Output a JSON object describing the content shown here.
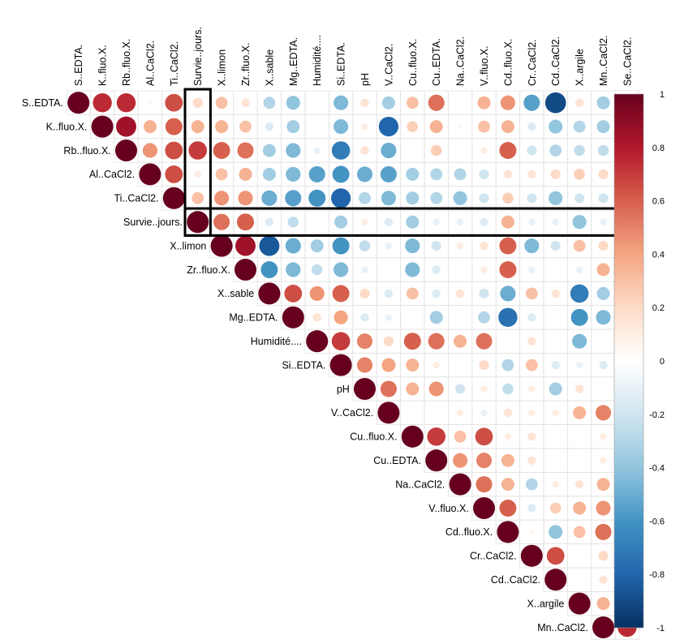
{
  "chart_data": {
    "type": "heatmap",
    "style": "correlation-matrix-upper-triangle-circles",
    "variables": [
      "S..EDTA.",
      "K..fluo.X.",
      "Rb..fluo.X.",
      "Al..CaCl2.",
      "Ti..CaCl2.",
      "Survie..jours.",
      "X..limon",
      "Zr..fluo.X.",
      "X..sable",
      "Mg..EDTA.",
      "Humidité....",
      "Si..EDTA.",
      "pH",
      "V..CaCl2.",
      "Cu..fluo.X.",
      "Cu..EDTA.",
      "Na..CaCl2.",
      "V..fluo.X.",
      "Cd..fluo.X.",
      "Cr..CaCl2.",
      "Cd..CaCl2.",
      "X..argile",
      "Mn..CaCl2.",
      "Se..CaCl2."
    ],
    "highlight_variable": "Survie..jours.",
    "color_scale": {
      "range": [
        -1,
        1
      ],
      "ticks": [
        1,
        0.8,
        0.6,
        0.4,
        0.2,
        0,
        -0.2,
        -0.4,
        -0.6,
        -0.8,
        -1
      ],
      "tick_labels": [
        "1",
        "0.8",
        "0.6",
        "0.4",
        "0.2",
        "0",
        "-0.2",
        "-0.4",
        "-0.6",
        "-0.8",
        "-1"
      ],
      "colors": [
        "#67001F",
        "#B2182B",
        "#D6604D",
        "#F4A582",
        "#FDDBC7",
        "#FFFFFF",
        "#D1E5F0",
        "#92C5DE",
        "#4393C3",
        "#2166AC",
        "#053061"
      ]
    },
    "upper_triangle": [
      [
        1,
        0.75,
        0.75,
        0.05,
        0.65,
        0.2,
        0.3,
        0.15,
        -0.3,
        -0.4,
        0,
        -0.45,
        0.15,
        -0.35,
        0.3,
        0.55,
        0,
        0.35,
        0.45,
        -0.55,
        -0.9,
        0.15,
        -0.35,
        -0.6
      ],
      [
        1,
        0.85,
        0.35,
        0.6,
        0.35,
        0.35,
        0.3,
        -0.15,
        -0.35,
        0,
        -0.45,
        0.1,
        -0.8,
        0.25,
        0.35,
        -0.05,
        0.3,
        0.35,
        -0.15,
        -0.4,
        -0.3,
        -0.35,
        -0.45
      ],
      [
        1,
        0.45,
        0.65,
        0.7,
        0.6,
        0.55,
        -0.35,
        -0.45,
        -0.1,
        -0.7,
        0.15,
        -0.5,
        0,
        0.25,
        0,
        0.1,
        0.6,
        -0.2,
        -0.3,
        -0.25,
        -0.25,
        -0.35
      ],
      [
        1,
        0.65,
        0.1,
        0.3,
        0.35,
        -0.35,
        -0.45,
        -0.55,
        -0.6,
        -0.5,
        -0.55,
        -0.35,
        -0.3,
        -0.3,
        -0.2,
        0.15,
        0.15,
        0.2,
        0.25,
        0.2,
        0.25
      ],
      [
        1,
        0.3,
        0.45,
        0.45,
        -0.5,
        -0.55,
        -0.6,
        -0.8,
        -0.3,
        -0.45,
        -0.35,
        -0.3,
        -0.4,
        -0.2,
        0.25,
        -0.2,
        -0.4,
        -0.2,
        -0.2,
        -0.25
      ],
      [
        1,
        0.55,
        0.6,
        -0.15,
        -0.25,
        0,
        -0.35,
        0.1,
        -0.15,
        -0.35,
        -0.1,
        -0.1,
        -0.15,
        0.35,
        -0.1,
        -0.1,
        -0.4,
        -0.1,
        -0.3
      ],
      [
        1,
        0.85,
        -0.85,
        -0.5,
        -0.35,
        -0.6,
        -0.25,
        -0.1,
        -0.45,
        -0.2,
        0.1,
        0.15,
        0.6,
        -0.45,
        -0.2,
        0.3,
        0.2,
        0
      ],
      [
        1,
        -0.6,
        -0.45,
        -0.25,
        -0.45,
        -0.1,
        0,
        -0.45,
        -0.15,
        0,
        0.1,
        0.6,
        -0.1,
        0,
        -0.1,
        0.35,
        0.25
      ],
      [
        1,
        0.65,
        0.45,
        0.6,
        0.2,
        -0.15,
        0.3,
        -0.15,
        0.15,
        -0.2,
        -0.5,
        0.3,
        0.15,
        -0.7,
        -0.35,
        -0.25
      ],
      [
        1,
        0.15,
        0.4,
        -0.15,
        -0.1,
        0,
        -0.35,
        0,
        -0.3,
        -0.75,
        -0.15,
        0,
        -0.6,
        -0.45,
        0
      ],
      [
        1,
        0.7,
        0.5,
        0.2,
        0.6,
        0.55,
        0.35,
        0.55,
        0,
        0.15,
        0,
        -0.45,
        0,
        0
      ],
      [
        1,
        0.5,
        0.4,
        0.35,
        0.1,
        0,
        0.2,
        -0.3,
        0.3,
        -0.15,
        -0.1,
        -0.15,
        0.05
      ],
      [
        1,
        0.55,
        0.35,
        0.45,
        -0.2,
        0.1,
        -0.25,
        0.1,
        -0.35,
        0.15,
        0,
        -0.5
      ],
      [
        1,
        0,
        0,
        0.1,
        -0.1,
        0.15,
        0.1,
        0.1,
        0.35,
        0.5,
        -0.15
      ],
      [
        1,
        0.7,
        0.3,
        0.65,
        0.1,
        0.15,
        0,
        0,
        0.1,
        -0.2
      ],
      [
        1,
        0.45,
        0.5,
        0.35,
        0.15,
        0,
        0,
        0.1,
        -0.35
      ],
      [
        1,
        0.55,
        0.35,
        -0.3,
        0.1,
        0.15,
        0.35,
        0.4
      ],
      [
        1,
        0.6,
        -0.15,
        0.25,
        0.35,
        0.45,
        0.15
      ],
      [
        1,
        0.05,
        -0.4,
        0.3,
        0.55,
        0.3
      ],
      [
        1,
        0.65,
        0,
        0.2,
        0.15
      ],
      [
        1,
        0,
        0.15,
        0.3
      ],
      [
        1,
        0.35,
        0.35
      ],
      [
        1,
        0.75
      ],
      [
        1
      ]
    ]
  }
}
